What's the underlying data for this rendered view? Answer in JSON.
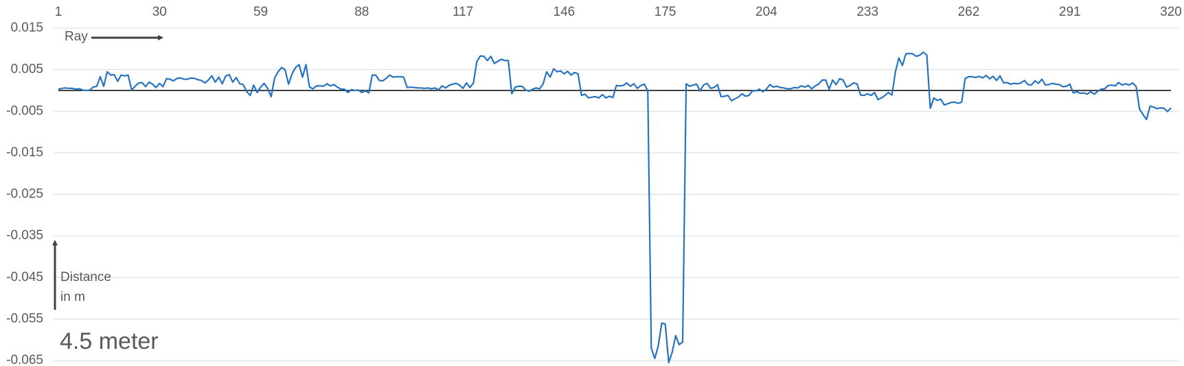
{
  "chart_data": {
    "type": "line",
    "x_label": "Ray",
    "y_label": [
      "Distance",
      "in m"
    ],
    "annotation": "4.5 meter",
    "xlim": [
      1,
      320
    ],
    "xticks": [
      1,
      30,
      59,
      88,
      117,
      146,
      175,
      204,
      233,
      262,
      291,
      320
    ],
    "ylim": [
      -0.065,
      0.015
    ],
    "yticks": [
      0.015,
      0.005,
      -0.005,
      -0.015,
      -0.025,
      -0.035,
      -0.045,
      -0.055,
      -0.065
    ],
    "grid": true,
    "x": [
      1,
      2,
      3,
      4,
      5,
      6,
      7,
      8,
      9,
      10,
      11,
      12,
      13,
      14,
      15,
      16,
      17,
      18,
      19,
      20,
      21,
      22,
      23,
      24,
      25,
      26,
      27,
      28,
      29,
      30,
      31,
      32,
      33,
      34,
      35,
      36,
      37,
      38,
      39,
      40,
      41,
      42,
      43,
      44,
      45,
      46,
      47,
      48,
      49,
      50,
      51,
      52,
      53,
      54,
      55,
      56,
      57,
      58,
      59,
      60,
      61,
      62,
      63,
      64,
      65,
      66,
      67,
      68,
      69,
      70,
      71,
      72,
      73,
      74,
      75,
      76,
      77,
      78,
      79,
      80,
      81,
      82,
      83,
      84,
      85,
      86,
      87,
      88,
      89,
      90,
      91,
      92,
      93,
      94,
      95,
      96,
      97,
      98,
      99,
      100,
      101,
      102,
      103,
      104,
      105,
      106,
      107,
      108,
      109,
      110,
      111,
      112,
      113,
      114,
      115,
      116,
      117,
      118,
      119,
      120,
      121,
      122,
      123,
      124,
      125,
      126,
      127,
      128,
      129,
      130,
      131,
      132,
      133,
      134,
      135,
      136,
      137,
      138,
      139,
      140,
      141,
      142,
      143,
      144,
      145,
      146,
      147,
      148,
      149,
      150,
      151,
      152,
      153,
      154,
      155,
      156,
      157,
      158,
      159,
      160,
      161,
      162,
      163,
      164,
      165,
      166,
      167,
      168,
      169,
      170,
      171,
      172,
      173,
      174,
      175,
      176,
      177,
      178,
      179,
      180,
      181,
      182,
      183,
      184,
      185,
      186,
      187,
      188,
      189,
      190,
      191,
      192,
      193,
      194,
      195,
      196,
      197,
      198,
      199,
      200,
      201,
      202,
      203,
      204,
      205,
      206,
      207,
      208,
      209,
      210,
      211,
      212,
      213,
      214,
      215,
      216,
      217,
      218,
      219,
      220,
      221,
      222,
      223,
      224,
      225,
      226,
      227,
      228,
      229,
      230,
      231,
      232,
      233,
      234,
      235,
      236,
      237,
      238,
      239,
      240,
      241,
      242,
      243,
      244,
      245,
      246,
      247,
      248,
      249,
      250,
      251,
      252,
      253,
      254,
      255,
      256,
      257,
      258,
      259,
      260,
      261,
      262,
      263,
      264,
      265,
      266,
      267,
      268,
      269,
      270,
      271,
      272,
      273,
      274,
      275,
      276,
      277,
      278,
      279,
      280,
      281,
      282,
      283,
      284,
      285,
      286,
      287,
      288,
      289,
      290,
      291,
      292,
      293,
      294,
      295,
      296,
      297,
      298,
      299,
      300,
      301,
      302,
      303,
      304,
      305,
      306,
      307,
      308,
      309,
      310,
      311,
      312,
      313,
      314,
      315,
      316,
      317,
      318,
      319,
      320
    ],
    "series": [
      {
        "color": "#2472c0",
        "values": [
          0.0003,
          0.0005,
          0.0006,
          0.0005,
          0.0005,
          0.0003,
          0.0004,
          0.0001,
          0,
          0.0001,
          0.0008,
          0.001,
          0.0033,
          0.001,
          0.0045,
          0.0037,
          0.0038,
          0.0022,
          0.0037,
          0.0035,
          0.0037,
          0.0001,
          0.001,
          0.0018,
          0.0019,
          0.0009,
          0.002,
          0.0015,
          0.0007,
          0.0017,
          0.0009,
          0.0028,
          0.0027,
          0.0023,
          0.0029,
          0.003,
          0.0027,
          0.0027,
          0.003,
          0.0029,
          0.0026,
          0.0024,
          0.0018,
          0.0025,
          0.0035,
          0.002,
          0.0032,
          0.0016,
          0.0035,
          0.0038,
          0.002,
          0.0031,
          0.0016,
          0.0014,
          -0.0003,
          -0.0012,
          0.0013,
          -0.0005,
          0.0008,
          0.0017,
          0.0005,
          -0.0015,
          0.003,
          0.0045,
          0.0055,
          0.005,
          0.0015,
          0.004,
          0.0055,
          0.0062,
          0.0032,
          0.0062,
          0.0008,
          0.0004,
          0.0011,
          0.0011,
          0.001,
          0.0016,
          0.0011,
          0.0014,
          0.0008,
          0.0003,
          0.0003,
          -0.0005,
          0.0002,
          0,
          0.0001,
          -0.0005,
          -0.0001,
          -0.0006,
          0.0037,
          0.0037,
          0.0024,
          0.0023,
          0.0029,
          0.0037,
          0.0032,
          0.0033,
          0.0033,
          0.0032,
          0.0007,
          0.0008,
          0.0007,
          0.0006,
          0.0006,
          0.0005,
          0.0006,
          0.0004,
          0.0006,
          0.0001,
          0.0011,
          0.0006,
          0.0012,
          0.0015,
          0.0017,
          0.0013,
          0.0005,
          0.0018,
          0.0007,
          0.0018,
          0.007,
          0.0083,
          0.0082,
          0.0072,
          0.0082,
          0.0065,
          0.007,
          0.0075,
          0.0072,
          0.0072,
          -0.0008,
          0.0008,
          0.001,
          0.001,
          0.0001,
          -0.0002,
          0.0003,
          0.0006,
          0.0004,
          0.0016,
          0.0045,
          0.0032,
          0.0052,
          0.0045,
          0.0047,
          0.004,
          0.0046,
          0.0037,
          0.0043,
          0.004,
          -0.0012,
          -0.0009,
          -0.0018,
          -0.0016,
          -0.0015,
          -0.0018,
          -0.001,
          -0.0018,
          -0.0014,
          -0.0017,
          0.0012,
          0.0011,
          0.0012,
          0.0018,
          0.001,
          0.0016,
          0.0005,
          0.0012,
          0.0015,
          -0.0001,
          -0.062,
          -0.0645,
          -0.0615,
          -0.056,
          -0.0562,
          -0.0655,
          -0.063,
          -0.059,
          -0.0612,
          -0.0605,
          0.0016,
          0.001,
          0.0013,
          0.0015,
          -0.0001,
          0.0013,
          0.0017,
          0.0005,
          0.0007,
          0.0014,
          -0.0015,
          -0.0014,
          -0.0012,
          -0.0025,
          -0.002,
          -0.0016,
          -0.0008,
          -0.0014,
          -0.0012,
          -0.0001,
          -0.0001,
          0.0003,
          -0.0003,
          0.0003,
          0.0014,
          0.0008,
          0.001,
          0.0007,
          0.0006,
          0.0004,
          0.0004,
          0.0007,
          0.0006,
          0.0011,
          0.0008,
          0.0012,
          0.0004,
          0.0011,
          0.0015,
          0.0025,
          0.0025,
          0.0003,
          0.0025,
          0.0014,
          0.0028,
          0.0025,
          0.0008,
          0.0012,
          0.0018,
          0.0016,
          -0.0011,
          -0.0012,
          -0.0008,
          -0.0012,
          -0.0005,
          -0.0022,
          -0.0018,
          -0.0012,
          -0.0005,
          -0.0011,
          0.0045,
          0.0078,
          0.006,
          0.0088,
          0.0089,
          0.0088,
          0.0082,
          0.0085,
          0.0092,
          0.0085,
          -0.0043,
          -0.0018,
          -0.0024,
          -0.0021,
          -0.0035,
          -0.0032,
          -0.0029,
          -0.0028,
          -0.0031,
          -0.0028,
          0.0029,
          0.0033,
          0.0033,
          0.0031,
          0.0034,
          0.003,
          0.0036,
          0.0028,
          0.0034,
          0.0024,
          0.0035,
          0.0018,
          0.0019,
          0.0015,
          0.0017,
          0.0016,
          0.0018,
          0.0024,
          0.0014,
          0.0013,
          0.0023,
          0.0017,
          0.0027,
          0.0013,
          0.0014,
          0.0017,
          0.0015,
          0.0014,
          0.0009,
          0.001,
          0.0015,
          -0.0006,
          -0.0003,
          -0.0007,
          -0.0006,
          -0.0009,
          -0.0003,
          -0.0009,
          -0.0002,
          0.0003,
          0.0004,
          0.0012,
          0.0013,
          0.0011,
          0.0019,
          0.0013,
          0.0016,
          0.0013,
          0.0018,
          0.001,
          -0.0045,
          -0.0058,
          -0.007,
          -0.0038,
          -0.004,
          -0.0044,
          -0.0042,
          -0.0043,
          -0.0051,
          -0.0042
        ]
      }
    ]
  }
}
